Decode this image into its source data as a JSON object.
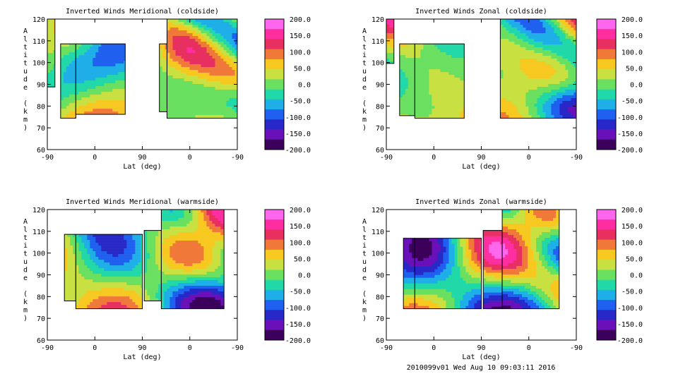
{
  "footer": "2010099v01 Wed Aug 10 09:03:11 2016",
  "colorbar": {
    "ticks": [
      "200.0",
      "150.0",
      "100.0",
      "50.0",
      "0.0",
      "-50.0",
      "-100.0",
      "-150.0",
      "-200.0"
    ],
    "colors": [
      "#ff66ee",
      "#ff2ea0",
      "#e83060",
      "#f07838",
      "#f6c820",
      "#c8e040",
      "#6ae060",
      "#20d8a8",
      "#1eaee8",
      "#2060f0",
      "#2828c8",
      "#6a10b8",
      "#3a005a"
    ]
  },
  "chart_data": [
    {
      "type": "heatmap",
      "title": "Inverted Winds Meridional (coldside)",
      "xlabel": "Lat (deg)",
      "ylabel": "Altitude (km)",
      "xticks": [
        "-90",
        "0",
        "90",
        "0",
        "-90"
      ],
      "yticks": [
        "60",
        "70",
        "80",
        "90",
        "100",
        "110",
        "120"
      ],
      "ylim": [
        60,
        120
      ],
      "colorbar_range": [
        -200,
        200
      ]
    },
    {
      "type": "heatmap",
      "title": "Inverted Winds Zonal (coldside)",
      "xlabel": "Lat (deg)",
      "ylabel": "Altitude (km)",
      "xticks": [
        "-90",
        "0",
        "90",
        "0",
        "-90"
      ],
      "yticks": [
        "60",
        "70",
        "80",
        "90",
        "100",
        "110",
        "120"
      ],
      "ylim": [
        60,
        120
      ],
      "colorbar_range": [
        -200,
        200
      ]
    },
    {
      "type": "heatmap",
      "title": "Inverted Winds Meridional (warmside)",
      "xlabel": "Lat (deg)",
      "ylabel": "Altitude (km)",
      "xticks": [
        "-90",
        "0",
        "90",
        "0",
        "-90"
      ],
      "yticks": [
        "60",
        "70",
        "80",
        "90",
        "100",
        "110",
        "120"
      ],
      "ylim": [
        60,
        120
      ],
      "colorbar_range": [
        -200,
        200
      ]
    },
    {
      "type": "heatmap",
      "title": "Inverted Winds Zonal (warmside)",
      "xlabel": "Lat (deg)",
      "ylabel": "Altitude (km)",
      "xticks": [
        "-90",
        "0",
        "90",
        "0",
        "-90"
      ],
      "yticks": [
        "60",
        "70",
        "80",
        "90",
        "100",
        "110",
        "120"
      ],
      "ylim": [
        60,
        120
      ],
      "colorbar_range": [
        -200,
        200
      ]
    }
  ]
}
